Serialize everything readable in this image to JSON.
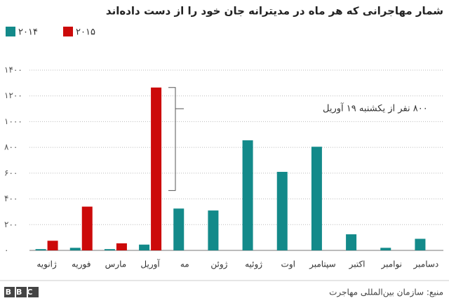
{
  "chart_data": {
    "type": "bar",
    "title": "شمار مهاجرانی که هر ماه در مدیترانه جان خود را از دست داده‌اند",
    "categories": [
      "ژانویه",
      "فوریه",
      "مارس",
      "آوریل",
      "مه",
      "ژوئن",
      "ژوئیه",
      "اوت",
      "سپتامبر",
      "اکتبر",
      "نوامبر",
      "دسامبر"
    ],
    "series": [
      {
        "name": "۲۰۱۴",
        "color": "#138a8a",
        "values": [
          10,
          20,
          10,
          45,
          325,
          310,
          855,
          610,
          805,
          125,
          20,
          90
        ]
      },
      {
        "name": "۲۰۱۵",
        "color": "#cc0a0a",
        "values": [
          75,
          340,
          55,
          1265,
          null,
          null,
          null,
          null,
          null,
          null,
          null,
          null
        ]
      }
    ],
    "ylim": [
      0,
      1400
    ],
    "yticks": [
      {
        "value": 0,
        "label": "۰"
      },
      {
        "value": 200,
        "label": "۲۰۰"
      },
      {
        "value": 400,
        "label": "۴۰۰"
      },
      {
        "value": 600,
        "label": "۶۰۰"
      },
      {
        "value": 800,
        "label": "۸۰۰"
      },
      {
        "value": 1000,
        "label": "۱۰۰۰"
      },
      {
        "value": 1200,
        "label": "۱۲۰۰"
      },
      {
        "value": 1400,
        "label": "۱۴۰۰"
      }
    ],
    "grid": true,
    "legend": "top-left",
    "annotation": {
      "text": "۸۰۰ نفر از یکشنبه ۱۹ آوریل",
      "range": [
        465,
        1265
      ]
    },
    "source": "منبع: سازمان بین‌المللی مهاجرت",
    "logo": "BBC"
  }
}
